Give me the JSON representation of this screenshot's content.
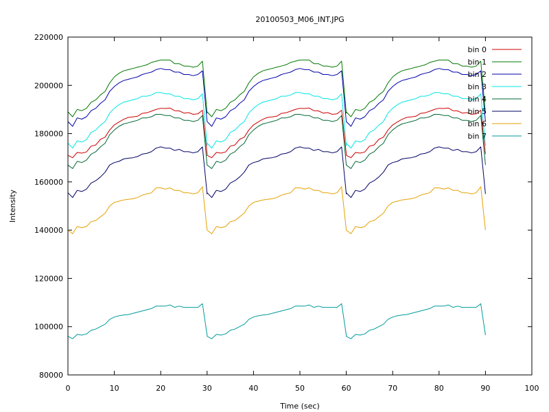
{
  "chart_data": {
    "type": "line",
    "title": "20100503_M06_INT.JPG",
    "xlabel": "Time (sec)",
    "ylabel": "Intensity",
    "xlim": [
      0,
      100
    ],
    "ylim": [
      80000,
      220000
    ],
    "xticks": [
      0,
      10,
      20,
      30,
      40,
      50,
      60,
      70,
      80,
      90,
      100
    ],
    "yticks": [
      80000,
      100000,
      120000,
      140000,
      160000,
      180000,
      200000,
      220000
    ],
    "grid": false,
    "legend_position": "top-right",
    "period_sec": 30,
    "cycles": 3,
    "sample_interval_sec": 1,
    "series": [
      {
        "name": "bin 0",
        "color": "#cc0000",
        "values": [
          171000,
          170000,
          172200,
          171900,
          172400,
          174800,
          175300,
          177600,
          178500,
          181500,
          183600,
          184800,
          185900,
          186700,
          186900,
          187200,
          188400,
          188600,
          189300,
          190000,
          190500,
          190400,
          190600,
          189500,
          189400,
          188500,
          188700,
          188000,
          188200,
          189700,
          171500
        ]
      },
      {
        "name": "bin 1",
        "color": "#007700",
        "values": [
          189000,
          187000,
          190000,
          189500,
          190500,
          193000,
          194000,
          196000,
          197500,
          201000,
          203500,
          205000,
          206000,
          206500,
          207000,
          207500,
          208000,
          208500,
          209500,
          210000,
          210500,
          210500,
          210500,
          209000,
          209000,
          208000,
          208000,
          207500,
          208000,
          210000,
          188500
        ]
      },
      {
        "name": "bin 2",
        "color": "#0000aa",
        "values": [
          185000,
          183000,
          186500,
          186000,
          187000,
          189500,
          190500,
          192500,
          194000,
          197500,
          199500,
          201000,
          202000,
          202500,
          203000,
          203500,
          204500,
          205000,
          205500,
          206500,
          207000,
          206500,
          206500,
          205500,
          205500,
          204500,
          204500,
          204000,
          204500,
          206000,
          185000
        ]
      },
      {
        "name": "bin 3",
        "color": "#00e5e5",
        "values": [
          176000,
          174000,
          177000,
          176500,
          177500,
          180500,
          181500,
          183500,
          185000,
          188500,
          190500,
          192000,
          193000,
          193500,
          194000,
          194500,
          195500,
          195500,
          196000,
          197000,
          197000,
          196500,
          196500,
          195500,
          195500,
          194500,
          194500,
          194000,
          194500,
          196500,
          175000
        ]
      },
      {
        "name": "bin 4",
        "color": "#006633",
        "values": [
          167000,
          165500,
          168500,
          168000,
          169000,
          171500,
          172500,
          174500,
          176000,
          179500,
          181500,
          183000,
          184000,
          184500,
          185000,
          185500,
          186500,
          186500,
          187000,
          188000,
          188000,
          187500,
          187500,
          186500,
          186500,
          185500,
          185500,
          185000,
          185500,
          187500,
          167000
        ]
      },
      {
        "name": "bin 5",
        "color": "#000066",
        "values": [
          155500,
          153500,
          156500,
          156000,
          157000,
          159500,
          160500,
          162000,
          164000,
          167000,
          168000,
          168500,
          169500,
          169800,
          170000,
          170500,
          171500,
          171800,
          172500,
          174000,
          174500,
          174000,
          174000,
          173000,
          173500,
          172500,
          172500,
          172000,
          172500,
          174500,
          155000
        ]
      },
      {
        "name": "bin 6",
        "color": "#e5a000",
        "values": [
          140000,
          138500,
          141500,
          141000,
          141500,
          143500,
          144000,
          145500,
          147000,
          150000,
          151500,
          152000,
          152500,
          152800,
          153000,
          153500,
          154500,
          155000,
          155500,
          157500,
          157500,
          157000,
          157500,
          156500,
          156500,
          155500,
          155500,
          155000,
          155500,
          158000,
          140000
        ]
      },
      {
        "name": "bin 7",
        "color": "#009999",
        "values": [
          96000,
          95000,
          96800,
          96500,
          97000,
          98500,
          99000,
          100000,
          101000,
          103000,
          104000,
          104500,
          104800,
          105000,
          105500,
          106000,
          106500,
          107000,
          107500,
          108500,
          108500,
          108500,
          109000,
          108000,
          108500,
          108000,
          108000,
          108000,
          108000,
          109500,
          96500
        ]
      }
    ]
  }
}
